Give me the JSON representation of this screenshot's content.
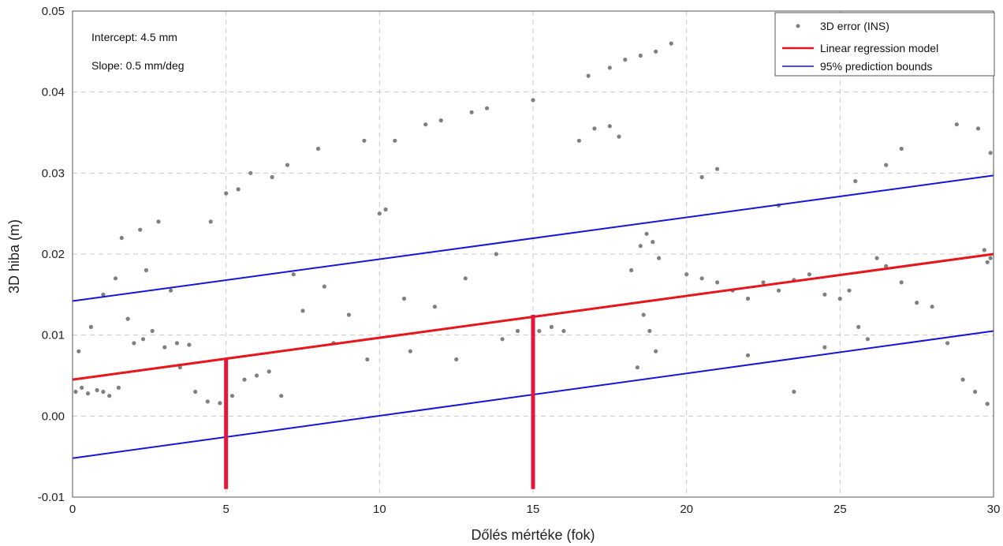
{
  "chart_data": {
    "type": "scatter",
    "xlabel": "Dőlés mértéke (fok)",
    "ylabel": "3D hiba (m)",
    "xlim": [
      0,
      30
    ],
    "ylim": [
      -0.01,
      0.05
    ],
    "x_ticks": [
      "0",
      "5",
      "10",
      "15",
      "20",
      "25",
      "30"
    ],
    "y_ticks": [
      "-0.01",
      "0.00",
      "0.01",
      "0.02",
      "0.03",
      "0.04",
      "0.05"
    ],
    "grid": "dashed",
    "legend_position": "top-right",
    "annotations": [
      "Intercept: 4.5 mm",
      "Slope: 0.5 mm/deg"
    ],
    "series": [
      {
        "name": "3D error (INS)",
        "kind": "scatter",
        "color": "#808080",
        "points": [
          [
            0.1,
            0.003
          ],
          [
            0.3,
            0.0035
          ],
          [
            0.5,
            0.0028
          ],
          [
            0.8,
            0.0032
          ],
          [
            1.0,
            0.003
          ],
          [
            1.2,
            0.0025
          ],
          [
            1.5,
            0.0035
          ],
          [
            0.2,
            0.008
          ],
          [
            0.6,
            0.011
          ],
          [
            1.0,
            0.015
          ],
          [
            1.4,
            0.017
          ],
          [
            1.8,
            0.012
          ],
          [
            2.0,
            0.009
          ],
          [
            2.3,
            0.0095
          ],
          [
            2.6,
            0.0105
          ],
          [
            3.0,
            0.0085
          ],
          [
            3.4,
            0.009
          ],
          [
            3.8,
            0.0088
          ],
          [
            1.6,
            0.022
          ],
          [
            2.2,
            0.023
          ],
          [
            2.8,
            0.024
          ],
          [
            3.5,
            0.006
          ],
          [
            4.0,
            0.003
          ],
          [
            4.4,
            0.0018
          ],
          [
            4.8,
            0.0016
          ],
          [
            5.2,
            0.0025
          ],
          [
            5.6,
            0.0045
          ],
          [
            6.0,
            0.005
          ],
          [
            6.4,
            0.0055
          ],
          [
            5.0,
            0.0275
          ],
          [
            5.4,
            0.028
          ],
          [
            4.5,
            0.024
          ],
          [
            5.8,
            0.03
          ],
          [
            6.5,
            0.0295
          ],
          [
            7.0,
            0.031
          ],
          [
            7.5,
            0.013
          ],
          [
            8.0,
            0.033
          ],
          [
            8.5,
            0.009
          ],
          [
            9.0,
            0.0125
          ],
          [
            9.5,
            0.034
          ],
          [
            10.0,
            0.025
          ],
          [
            10.2,
            0.0255
          ],
          [
            10.5,
            0.034
          ],
          [
            11.0,
            0.008
          ],
          [
            11.5,
            0.036
          ],
          [
            12.0,
            0.0365
          ],
          [
            12.5,
            0.007
          ],
          [
            13.0,
            0.0375
          ],
          [
            13.5,
            0.038
          ],
          [
            14.0,
            0.0095
          ],
          [
            14.5,
            0.0105
          ],
          [
            15.0,
            0.039
          ],
          [
            15.2,
            0.0105
          ],
          [
            15.6,
            0.011
          ],
          [
            16.0,
            0.0105
          ],
          [
            16.5,
            0.034
          ],
          [
            17.0,
            0.0355
          ],
          [
            17.5,
            0.0358
          ],
          [
            17.8,
            0.0345
          ],
          [
            16.8,
            0.042
          ],
          [
            17.5,
            0.043
          ],
          [
            18.0,
            0.044
          ],
          [
            18.5,
            0.0445
          ],
          [
            19.0,
            0.045
          ],
          [
            19.5,
            0.046
          ],
          [
            18.2,
            0.018
          ],
          [
            18.5,
            0.021
          ],
          [
            18.7,
            0.0225
          ],
          [
            18.9,
            0.0215
          ],
          [
            19.1,
            0.0195
          ],
          [
            18.6,
            0.0125
          ],
          [
            18.8,
            0.0105
          ],
          [
            19.0,
            0.008
          ],
          [
            18.4,
            0.006
          ],
          [
            20.0,
            0.0175
          ],
          [
            20.5,
            0.017
          ],
          [
            21.0,
            0.0165
          ],
          [
            21.5,
            0.0155
          ],
          [
            22.0,
            0.0145
          ],
          [
            22.5,
            0.0165
          ],
          [
            23.0,
            0.0155
          ],
          [
            23.5,
            0.0168
          ],
          [
            24.0,
            0.0175
          ],
          [
            24.5,
            0.015
          ],
          [
            25.0,
            0.0145
          ],
          [
            25.3,
            0.0155
          ],
          [
            25.6,
            0.011
          ],
          [
            25.9,
            0.0095
          ],
          [
            26.2,
            0.0195
          ],
          [
            26.5,
            0.0185
          ],
          [
            27.0,
            0.0165
          ],
          [
            27.5,
            0.014
          ],
          [
            28.0,
            0.0135
          ],
          [
            28.5,
            0.009
          ],
          [
            29.0,
            0.0045
          ],
          [
            29.4,
            0.003
          ],
          [
            29.8,
            0.0015
          ],
          [
            29.8,
            0.019
          ],
          [
            29.9,
            0.0195
          ],
          [
            29.7,
            0.0205
          ],
          [
            28.8,
            0.036
          ],
          [
            29.5,
            0.0355
          ],
          [
            29.9,
            0.0325
          ],
          [
            27.0,
            0.033
          ],
          [
            26.5,
            0.031
          ],
          [
            25.5,
            0.029
          ],
          [
            23.0,
            0.026
          ],
          [
            21.0,
            0.0305
          ],
          [
            20.5,
            0.0295
          ],
          [
            22.0,
            0.0075
          ],
          [
            23.5,
            0.003
          ],
          [
            24.5,
            0.0085
          ],
          [
            11.8,
            0.0135
          ],
          [
            12.8,
            0.017
          ],
          [
            13.8,
            0.02
          ],
          [
            7.2,
            0.0175
          ],
          [
            8.2,
            0.016
          ],
          [
            9.6,
            0.007
          ],
          [
            10.8,
            0.0145
          ],
          [
            6.8,
            0.0025
          ],
          [
            3.2,
            0.0155
          ],
          [
            2.4,
            0.018
          ]
        ]
      },
      {
        "name": "Linear regression model",
        "kind": "line",
        "color": "#e8151b",
        "x": [
          0,
          30
        ],
        "y": [
          0.0045,
          0.02
        ]
      },
      {
        "name": "95% prediction bounds",
        "kind": "line",
        "color": "#1515d6",
        "x": [
          0,
          30
        ],
        "y": [
          0.0142,
          0.0297
        ]
      },
      {
        "name": "",
        "kind": "line",
        "color": "#1515d6",
        "x": [
          0,
          30
        ],
        "y": [
          -0.0052,
          0.0105
        ]
      }
    ],
    "markers": [
      {
        "x": 5,
        "y_from": -0.009,
        "y_to": 0.007,
        "color": "#e8153a"
      },
      {
        "x": 15,
        "y_from": -0.009,
        "y_to": 0.0125,
        "color": "#e8153a"
      }
    ]
  }
}
